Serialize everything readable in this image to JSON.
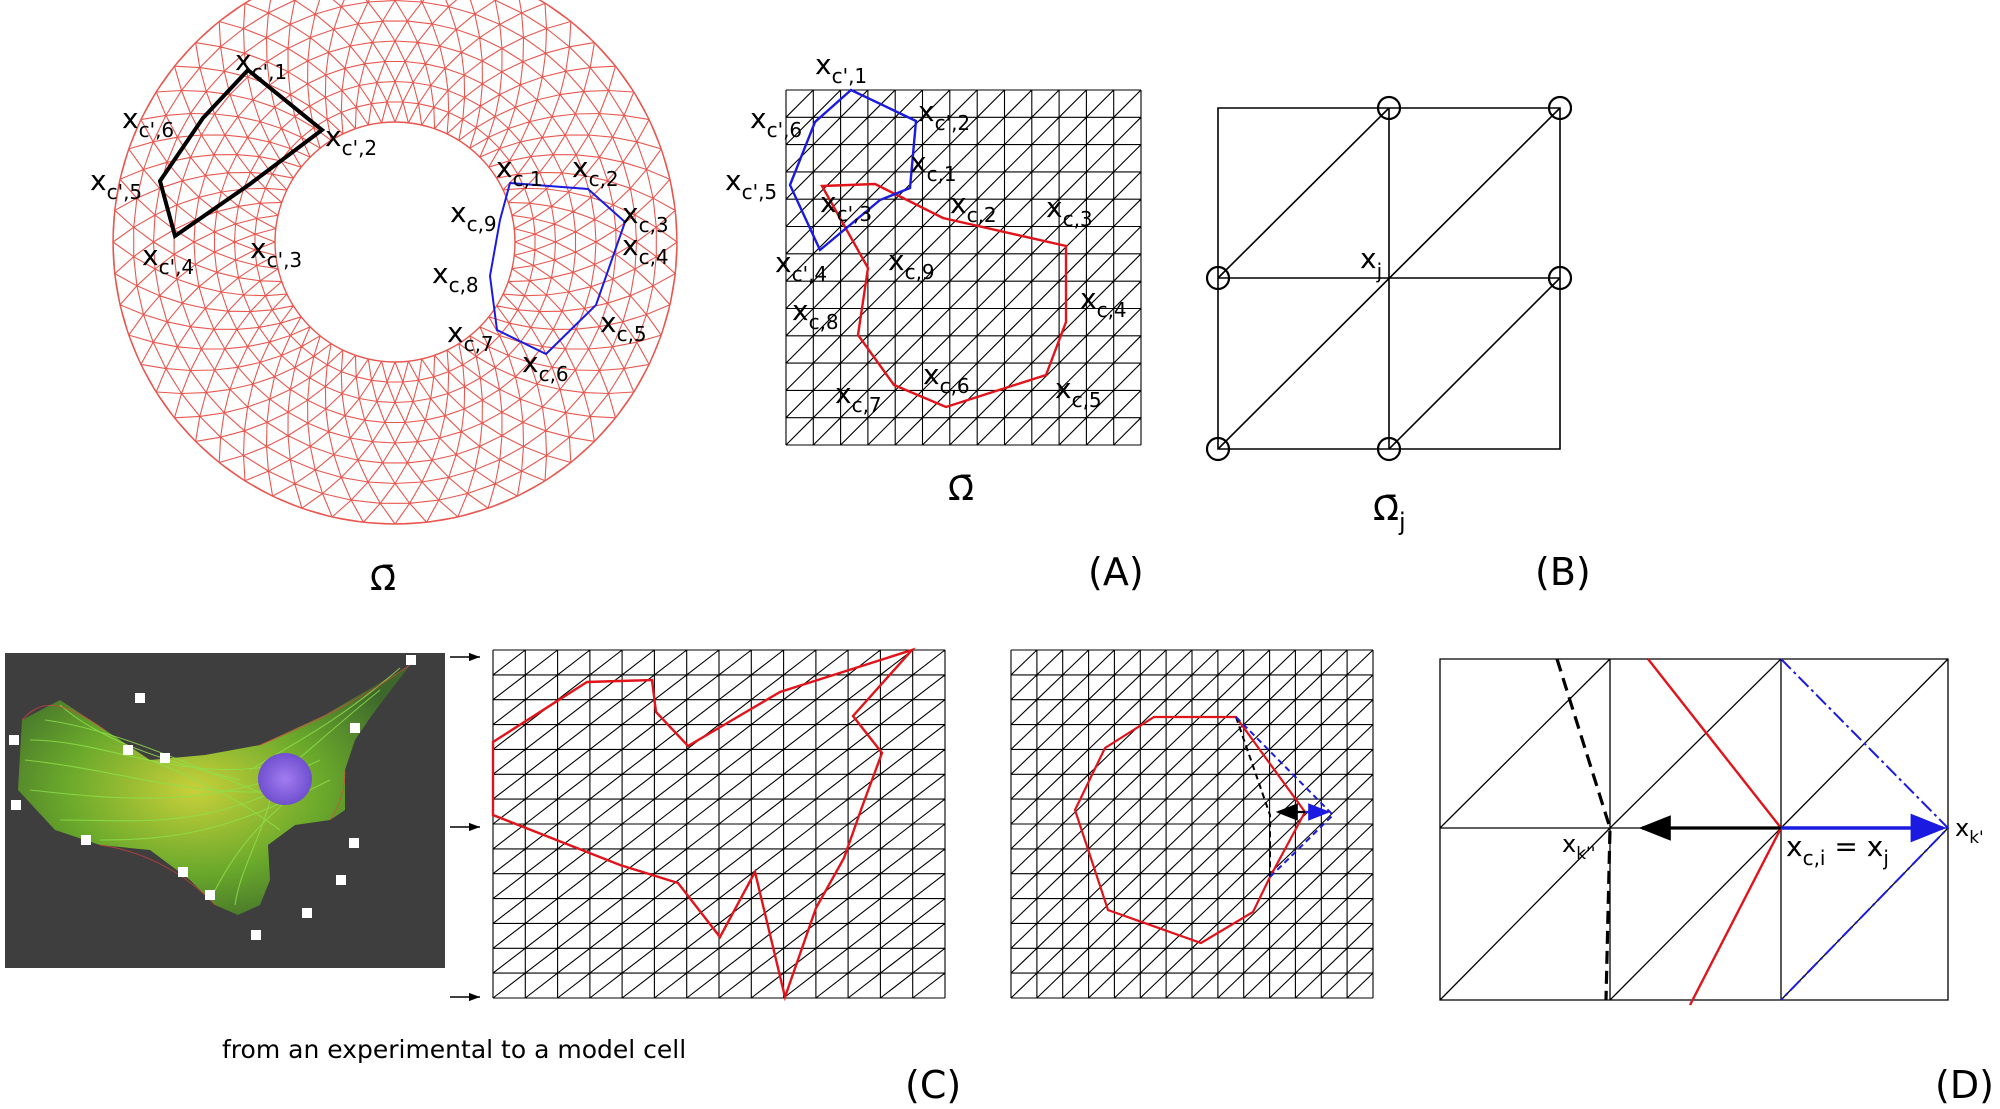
{
  "colors": {
    "mesh_red": "#e8574f",
    "contour_red": "#e0141a",
    "contour_blue": "#1a1ae0",
    "black": "#000000",
    "photo_bg": "#3e3e3e"
  },
  "annulus": {
    "domain_label": "Ω̄",
    "cell_cprime": [
      {
        "main": "x",
        "sub": "c',1"
      },
      {
        "main": "x",
        "sub": "c',2"
      },
      {
        "main": "x",
        "sub": "c',3"
      },
      {
        "main": "x",
        "sub": "c',4"
      },
      {
        "main": "x",
        "sub": "c',5"
      },
      {
        "main": "x",
        "sub": "c',6"
      }
    ],
    "cell_c": [
      {
        "main": "x",
        "sub": "c,1"
      },
      {
        "main": "x",
        "sub": "c,2"
      },
      {
        "main": "x",
        "sub": "c,3"
      },
      {
        "main": "x",
        "sub": "c,4"
      },
      {
        "main": "x",
        "sub": "c,5"
      },
      {
        "main": "x",
        "sub": "c,6"
      },
      {
        "main": "x",
        "sub": "c,7"
      },
      {
        "main": "x",
        "sub": "c,8"
      },
      {
        "main": "x",
        "sub": "c,9"
      }
    ]
  },
  "panel_a": {
    "letter": "(A)",
    "domain_label": "Ω̄",
    "cell_cprime": [
      {
        "main": "x",
        "sub": "c',1"
      },
      {
        "main": "x",
        "sub": "c',2"
      },
      {
        "main": "x",
        "sub": "c',3"
      },
      {
        "main": "x",
        "sub": "c',4"
      },
      {
        "main": "x",
        "sub": "c',5"
      },
      {
        "main": "x",
        "sub": "c',6"
      }
    ],
    "cell_c": [
      {
        "main": "x",
        "sub": "c,1"
      },
      {
        "main": "x",
        "sub": "c,2"
      },
      {
        "main": "x",
        "sub": "c,3"
      },
      {
        "main": "x",
        "sub": "c,4"
      },
      {
        "main": "x",
        "sub": "c,5"
      },
      {
        "main": "x",
        "sub": "c,6"
      },
      {
        "main": "x",
        "sub": "c,7"
      },
      {
        "main": "x",
        "sub": "c,8"
      },
      {
        "main": "x",
        "sub": "c,9"
      }
    ]
  },
  "panel_b": {
    "letter": "(B)",
    "node_label": {
      "main": "x",
      "sub": "j"
    },
    "domain_label": {
      "main": "Ω̄",
      "sub": "j"
    }
  },
  "panel_c": {
    "letter": "(C)",
    "caption": "from an experimental to a model cell"
  },
  "panel_d": {
    "letter": "(D)",
    "left_label": {
      "main": "x",
      "sub": "k''"
    },
    "center_label": {
      "main": "x",
      "sub": "c,i",
      "rest": " = x",
      "sub2": "j"
    },
    "right_label": {
      "main": "x",
      "sub": "k'"
    }
  }
}
